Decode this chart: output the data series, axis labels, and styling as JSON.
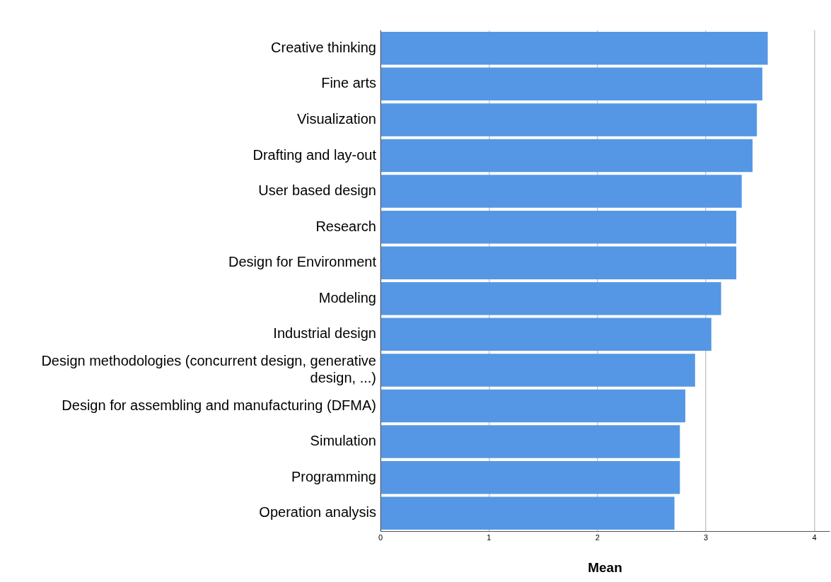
{
  "chart_data": {
    "type": "bar",
    "orientation": "horizontal",
    "xlabel": "Mean",
    "categories": [
      "Creative thinking",
      "Fine arts",
      "Visualization",
      "Drafting and lay-out",
      "User based design",
      "Research",
      "Design for Environment",
      "Modeling",
      "Industrial design",
      "Design methodologies (concurrent design, generative design, ...)",
      "Design for assembling and manufacturing (DFMA)",
      "Simulation",
      "Programming",
      "Operation analysis"
    ],
    "values": [
      3.57,
      3.52,
      3.47,
      3.43,
      3.33,
      3.28,
      3.28,
      3.14,
      3.05,
      2.9,
      2.81,
      2.76,
      2.76,
      2.71
    ],
    "color": "#5597e5",
    "xlim": [
      0,
      4.14
    ],
    "xticks": [
      0,
      1,
      2,
      3,
      4
    ],
    "grid": "x",
    "legend": false
  }
}
